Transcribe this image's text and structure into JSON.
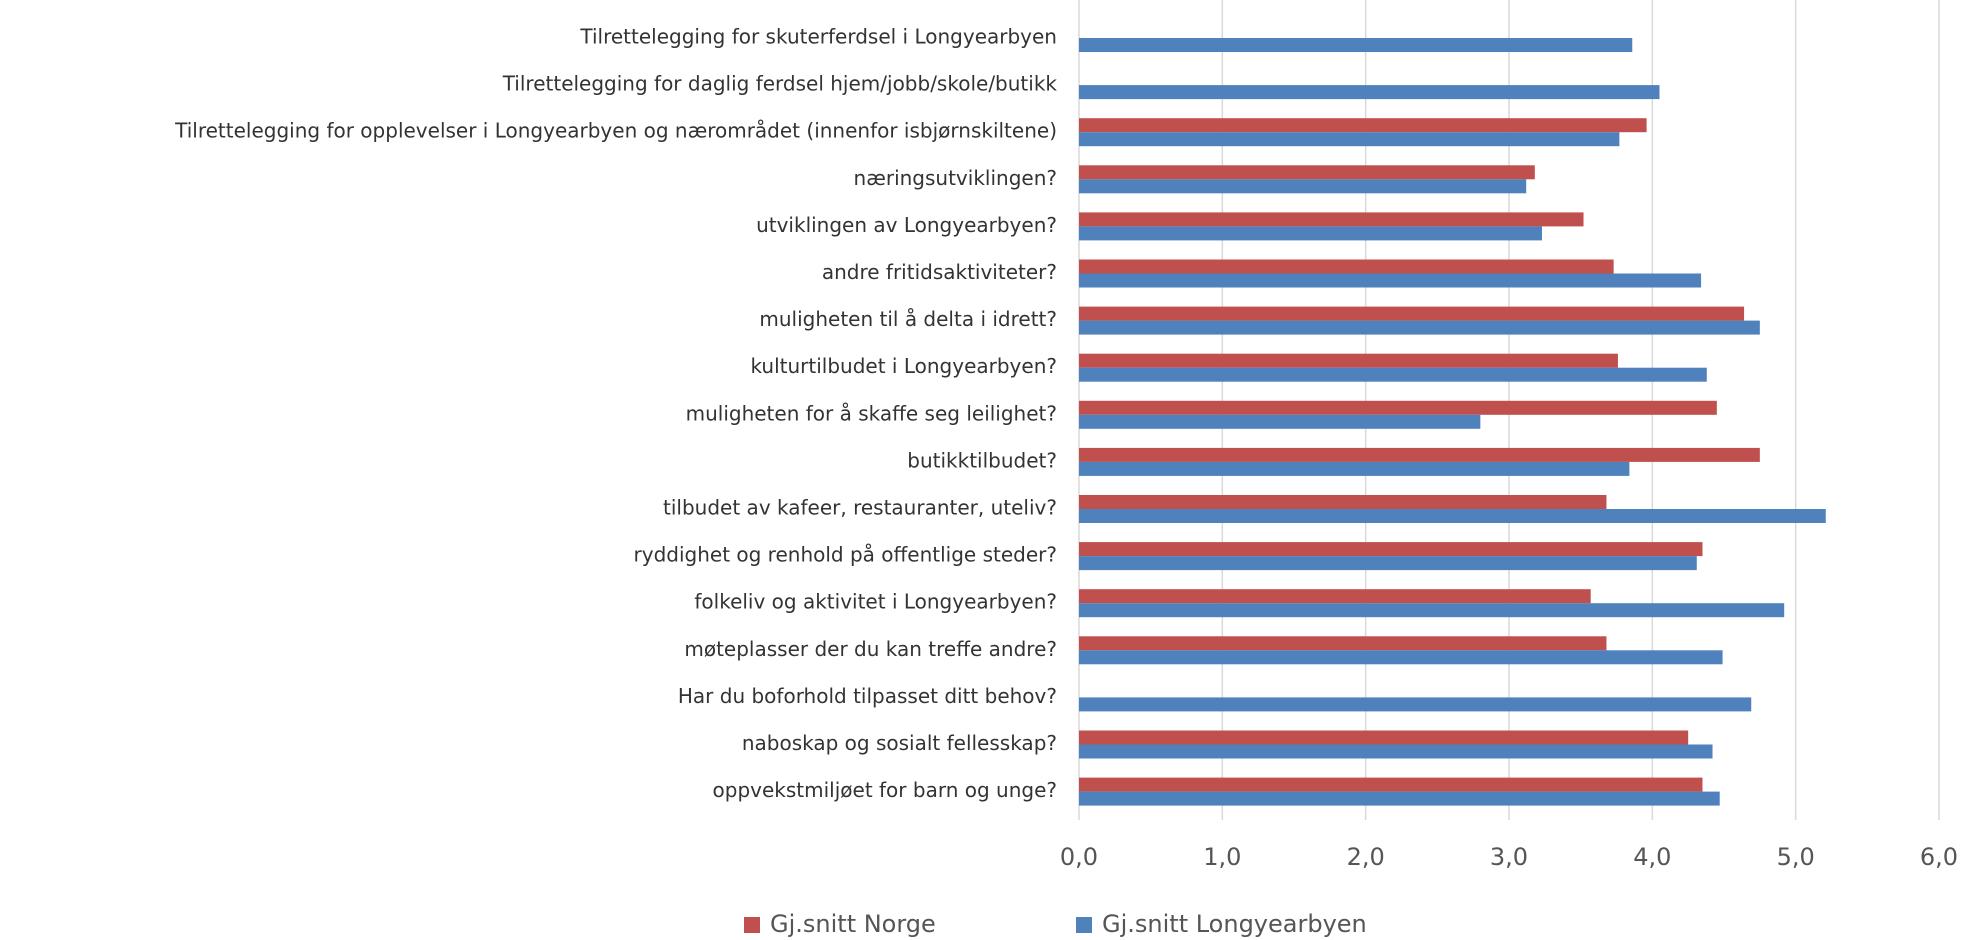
{
  "chart_data": {
    "type": "barh",
    "categories": [
      "Tilrettelegging for skuterferdsel i Longyearbyen",
      "Tilrettelegging for daglig ferdsel hjem/jobb/skole/butikk",
      "Tilrettelegging for opplevelser i Longyearbyen og nærområdet (innenfor isbjørnskiltene)",
      "næringsutviklingen?",
      "utviklingen av Longyearbyen?",
      "andre fritidsaktiviteter?",
      "muligheten til å delta i idrett?",
      "kulturtilbudet i Longyearbyen?",
      "muligheten for å skaffe seg leilighet?",
      "butikktilbudet?",
      "tilbudet av kafeer, restauranter, uteliv?",
      "ryddighet og renhold på offentlige steder?",
      "folkeliv og aktivitet i Longyearbyen?",
      "møteplasser der du kan treffe andre?",
      "Har du boforhold tilpasset ditt behov?",
      "naboskap og sosialt fellesskap?",
      "oppvekstmiljøet for barn og unge?"
    ],
    "series": [
      {
        "name": "Gj.snitt Norge",
        "color": "#c0504d",
        "values": [
          null,
          null,
          3.96,
          3.18,
          3.52,
          3.73,
          4.64,
          3.76,
          4.45,
          4.75,
          3.68,
          4.35,
          3.57,
          3.68,
          null,
          4.25,
          4.35
        ]
      },
      {
        "name": "Gj.snitt Longyearbyen",
        "color": "#4f81bd",
        "values": [
          3.86,
          4.05,
          3.77,
          3.12,
          3.23,
          4.34,
          4.75,
          4.38,
          2.8,
          3.84,
          5.21,
          4.31,
          4.92,
          4.49,
          4.69,
          4.42,
          4.47
        ]
      }
    ],
    "xlim": [
      0,
      6
    ],
    "xticks": [
      {
        "value": 0,
        "label": "0,0"
      },
      {
        "value": 1,
        "label": "1,0"
      },
      {
        "value": 2,
        "label": "2,0"
      },
      {
        "value": 3,
        "label": "3,0"
      },
      {
        "value": 4,
        "label": "4,0"
      },
      {
        "value": 5,
        "label": "5,0"
      },
      {
        "value": 6,
        "label": "6,0"
      }
    ],
    "grid": true,
    "legend": "bottom"
  }
}
